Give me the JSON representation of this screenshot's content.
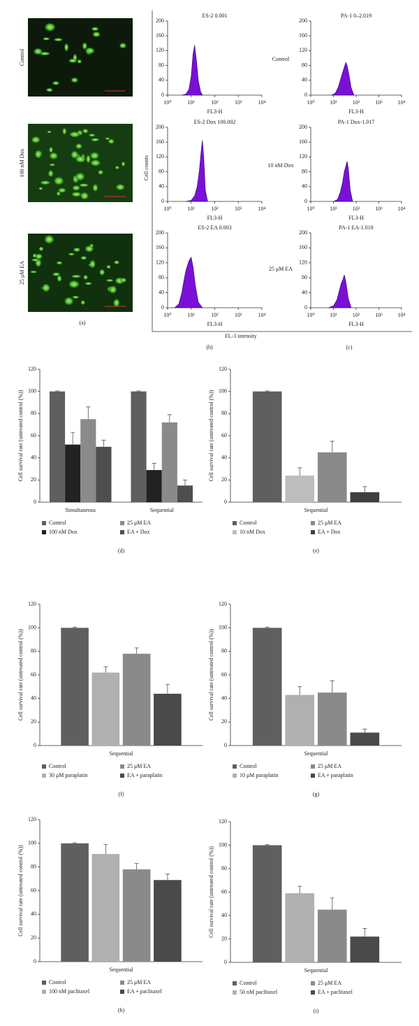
{
  "panel_a": {
    "row_labels": [
      "Control",
      "100 nM Dox",
      "25 μM EA"
    ],
    "label": "(a)"
  },
  "flow": {
    "y_label": "Cell counts",
    "x_label": "FL-3 intensity",
    "row_labels": [
      "Control",
      "10 nM Dox",
      "25 μM EA"
    ],
    "panel_labels": [
      "(b)",
      "(c)"
    ]
  },
  "chart_data": [
    {
      "type": "area",
      "title": "ES-2 0.001",
      "x_label": "FL3-H",
      "color": "#7a10d8",
      "log_x": true,
      "x": [
        4,
        6,
        8,
        10,
        12,
        14,
        17,
        20,
        25,
        30
      ],
      "values": [
        0,
        3,
        15,
        50,
        110,
        135,
        90,
        40,
        10,
        0
      ],
      "xlim": [
        1,
        10000
      ],
      "xticks": [
        {
          "value": 1,
          "label": "10⁰"
        },
        {
          "value": 10,
          "label": "10¹"
        },
        {
          "value": 100,
          "label": "10²"
        },
        {
          "value": 1000,
          "label": "10³"
        },
        {
          "value": 10000,
          "label": "10⁴"
        }
      ],
      "ylim": [
        0,
        200
      ],
      "yticks": [
        0,
        40,
        80,
        120,
        160,
        200
      ]
    },
    {
      "type": "area",
      "title": "PA-1 0–2.019",
      "x_label": "FL3-H",
      "color": "#7a10d8",
      "log_x": true,
      "x": [
        8,
        12,
        16,
        20,
        25,
        30,
        35,
        40,
        50,
        60,
        80
      ],
      "values": [
        0,
        5,
        20,
        40,
        60,
        75,
        88,
        80,
        50,
        20,
        0
      ],
      "xlim": [
        1,
        10000
      ],
      "xticks": [
        {
          "value": 1,
          "label": "10⁰"
        },
        {
          "value": 10,
          "label": "10¹"
        },
        {
          "value": 100,
          "label": "10²"
        },
        {
          "value": 1000,
          "label": "10³"
        },
        {
          "value": 10000,
          "label": "10⁴"
        }
      ],
      "ylim": [
        0,
        200
      ],
      "yticks": [
        0,
        40,
        80,
        120,
        160,
        200
      ]
    },
    {
      "type": "area",
      "title": "ES-2 Dox 100.002",
      "x_label": "FL3-H",
      "color": "#7a10d8",
      "log_x": true,
      "x": [
        6,
        10,
        14,
        18,
        22,
        26,
        30,
        34,
        40,
        50
      ],
      "values": [
        0,
        3,
        15,
        40,
        80,
        130,
        165,
        120,
        30,
        0
      ],
      "xlim": [
        1,
        10000
      ],
      "xticks": [
        {
          "value": 1,
          "label": "10⁰"
        },
        {
          "value": 10,
          "label": "10¹"
        },
        {
          "value": 100,
          "label": "10²"
        },
        {
          "value": 1000,
          "label": "10³"
        },
        {
          "value": 10000,
          "label": "10⁴"
        }
      ],
      "ylim": [
        0,
        200
      ],
      "yticks": [
        0,
        40,
        80,
        120,
        160,
        200
      ]
    },
    {
      "type": "area",
      "title": "PA-1 Dox-1.017",
      "x_label": "FL3-H",
      "color": "#7a10d8",
      "log_x": true,
      "x": [
        10,
        15,
        20,
        25,
        30,
        35,
        40,
        45,
        55,
        70
      ],
      "values": [
        0,
        5,
        25,
        50,
        80,
        95,
        108,
        90,
        30,
        0
      ],
      "xlim": [
        1,
        10000
      ],
      "xticks": [
        {
          "value": 1,
          "label": "10⁰"
        },
        {
          "value": 10,
          "label": "10¹"
        },
        {
          "value": 100,
          "label": "10²"
        },
        {
          "value": 1000,
          "label": "10³"
        },
        {
          "value": 10000,
          "label": "10⁴"
        }
      ],
      "ylim": [
        0,
        200
      ],
      "yticks": [
        0,
        40,
        80,
        120,
        160,
        200
      ]
    },
    {
      "type": "area",
      "title": "ES-2 EA 0.003",
      "x_label": "FL3-H",
      "color": "#7a10d8",
      "log_x": true,
      "x": [
        2,
        3,
        4,
        5,
        6,
        8,
        10,
        12,
        15,
        20,
        30
      ],
      "values": [
        0,
        10,
        40,
        75,
        100,
        125,
        135,
        110,
        60,
        15,
        0
      ],
      "xlim": [
        1,
        10000
      ],
      "xticks": [
        {
          "value": 1,
          "label": "10⁰"
        },
        {
          "value": 10,
          "label": "10¹"
        },
        {
          "value": 100,
          "label": "10²"
        },
        {
          "value": 1000,
          "label": "10³"
        },
        {
          "value": 10000,
          "label": "10⁴"
        }
      ],
      "ylim": [
        0,
        200
      ],
      "yticks": [
        0,
        40,
        80,
        120,
        160,
        200
      ]
    },
    {
      "type": "area",
      "title": "PA-1 EA-1.018",
      "x_label": "FL3-H",
      "color": "#7a10d8",
      "log_x": true,
      "x": [
        6,
        10,
        14,
        18,
        22,
        26,
        30,
        35,
        45,
        60
      ],
      "values": [
        0,
        5,
        20,
        45,
        65,
        75,
        88,
        70,
        25,
        0
      ],
      "xlim": [
        1,
        10000
      ],
      "xticks": [
        {
          "value": 1,
          "label": "10⁰"
        },
        {
          "value": 10,
          "label": "10¹"
        },
        {
          "value": 100,
          "label": "10²"
        },
        {
          "value": 1000,
          "label": "10³"
        },
        {
          "value": 10000,
          "label": "10⁴"
        }
      ],
      "ylim": [
        0,
        200
      ],
      "yticks": [
        0,
        40,
        80,
        120,
        160,
        200
      ]
    },
    {
      "type": "bar",
      "label": "(d)",
      "y_label": "Cell survival rate (untreated control (%))",
      "categories": [
        "Simultaneous",
        "Sequential"
      ],
      "ylim": [
        0,
        120
      ],
      "yticks": [
        0,
        20,
        40,
        60,
        80,
        100,
        120
      ],
      "series": [
        {
          "name": "Control",
          "color": "#5f5f5f",
          "values": [
            100,
            100
          ],
          "errors": [
            0.5,
            0.5
          ]
        },
        {
          "name": "100 nM Dox",
          "color": "#222222",
          "values": [
            52,
            29
          ],
          "errors": [
            11,
            6
          ]
        },
        {
          "name": "25 μM EA",
          "color": "#8a8a8a",
          "values": [
            75,
            72
          ],
          "errors": [
            11,
            7
          ]
        },
        {
          "name": "EA + Dox",
          "color": "#4e4e4e",
          "values": [
            50,
            15
          ],
          "errors": [
            6,
            5
          ]
        }
      ]
    },
    {
      "type": "bar",
      "label": "(e)",
      "y_label": "Cell survival rate (untreated control (%))",
      "categories": [
        "Sequential"
      ],
      "ylim": [
        0,
        120
      ],
      "yticks": [
        0,
        20,
        40,
        60,
        80,
        100,
        120
      ],
      "series": [
        {
          "name": "Control",
          "color": "#5f5f5f",
          "values": [
            100
          ],
          "errors": [
            0.5
          ]
        },
        {
          "name": "10 nM Dox",
          "color": "#bdbdbd",
          "values": [
            24
          ],
          "errors": [
            7
          ]
        },
        {
          "name": "25 μM EA",
          "color": "#8a8a8a",
          "values": [
            45
          ],
          "errors": [
            10
          ]
        },
        {
          "name": "EA + Dox",
          "color": "#404040",
          "values": [
            9
          ],
          "errors": [
            5
          ]
        }
      ]
    },
    {
      "type": "bar",
      "label": "(f)",
      "y_label": "Cell survival rate (untreated control (%))",
      "categories": [
        "Sequential"
      ],
      "ylim": [
        0,
        120
      ],
      "yticks": [
        0,
        20,
        40,
        60,
        80,
        100,
        120
      ],
      "series": [
        {
          "name": "Control",
          "color": "#5f5f5f",
          "values": [
            100
          ],
          "errors": [
            0.5
          ]
        },
        {
          "name": "30 μM paraplatin",
          "color": "#b0b0b0",
          "values": [
            62
          ],
          "errors": [
            5
          ]
        },
        {
          "name": "25 μM EA",
          "color": "#8a8a8a",
          "values": [
            78
          ],
          "errors": [
            5
          ]
        },
        {
          "name": "EA + paraplatin",
          "color": "#4a4a4a",
          "values": [
            44
          ],
          "errors": [
            8
          ]
        }
      ]
    },
    {
      "type": "bar",
      "label": "(g)",
      "y_label": "Cell survival rate (untreated control (%))",
      "categories": [
        "Sequential"
      ],
      "ylim": [
        0,
        120
      ],
      "yticks": [
        0,
        20,
        40,
        60,
        80,
        100,
        120
      ],
      "series": [
        {
          "name": "Control",
          "color": "#5f5f5f",
          "values": [
            100
          ],
          "errors": [
            0.5
          ]
        },
        {
          "name": "10 μM paraplatin",
          "color": "#b0b0b0",
          "values": [
            43
          ],
          "errors": [
            7
          ]
        },
        {
          "name": "25 μM EA",
          "color": "#8a8a8a",
          "values": [
            45
          ],
          "errors": [
            10
          ]
        },
        {
          "name": "EA + paraplatin",
          "color": "#4a4a4a",
          "values": [
            11
          ],
          "errors": [
            3
          ]
        }
      ]
    },
    {
      "type": "bar",
      "label": "(h)",
      "y_label": "Cell survival rate (untreated control (%))",
      "categories": [
        "Sequential"
      ],
      "ylim": [
        0,
        120
      ],
      "yticks": [
        0,
        20,
        40,
        60,
        80,
        100,
        120
      ],
      "series": [
        {
          "name": "Control",
          "color": "#5f5f5f",
          "values": [
            100
          ],
          "errors": [
            0.5
          ]
        },
        {
          "name": "100 nM paclitaxel",
          "color": "#b0b0b0",
          "values": [
            91
          ],
          "errors": [
            8
          ]
        },
        {
          "name": "25 μM EA",
          "color": "#8a8a8a",
          "values": [
            78
          ],
          "errors": [
            5
          ]
        },
        {
          "name": "EA + paclitaxel",
          "color": "#4a4a4a",
          "values": [
            69
          ],
          "errors": [
            5
          ]
        }
      ]
    },
    {
      "type": "bar",
      "label": "(i)",
      "y_label": "Cell survival rate (untreated control (%))",
      "categories": [
        "Sequential"
      ],
      "ylim": [
        0,
        120
      ],
      "yticks": [
        0,
        20,
        40,
        60,
        80,
        100,
        120
      ],
      "series": [
        {
          "name": "Control",
          "color": "#5f5f5f",
          "values": [
            100
          ],
          "errors": [
            0.5
          ]
        },
        {
          "name": "50 nM paclitaxel",
          "color": "#b0b0b0",
          "values": [
            59
          ],
          "errors": [
            6
          ]
        },
        {
          "name": "25 μM EA",
          "color": "#8a8a8a",
          "values": [
            45
          ],
          "errors": [
            10
          ]
        },
        {
          "name": "EA + paclitaxel",
          "color": "#4a4a4a",
          "values": [
            22
          ],
          "errors": [
            7
          ]
        }
      ]
    }
  ]
}
